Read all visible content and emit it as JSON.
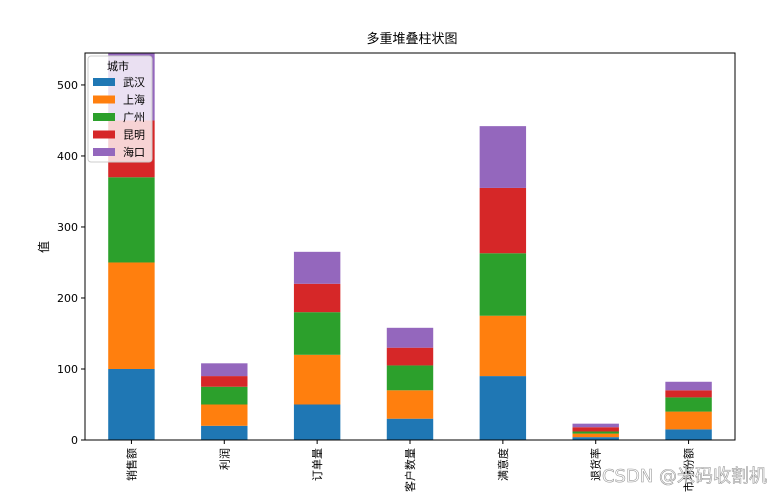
{
  "chart_data": {
    "type": "bar",
    "stacked": true,
    "title": "多重堆叠柱状图",
    "xlabel": "",
    "ylabel": "值",
    "ylim": [
      0,
      545
    ],
    "yticks": [
      0,
      100,
      200,
      300,
      400,
      500
    ],
    "categories": [
      "销售额",
      "利润",
      "订单量",
      "客户数量",
      "满意度",
      "退货率",
      "市场份额"
    ],
    "legend": {
      "title": "城市",
      "placement": "top-left"
    },
    "series": [
      {
        "name": "武汉",
        "color": "#1f77b4",
        "values": [
          100,
          20,
          50,
          30,
          90,
          4,
          15
        ]
      },
      {
        "name": "上海",
        "color": "#ff7f0e",
        "values": [
          150,
          30,
          70,
          40,
          85,
          5,
          25
        ]
      },
      {
        "name": "广州",
        "color": "#2ca02c",
        "values": [
          120,
          25,
          60,
          35,
          88,
          3,
          20
        ]
      },
      {
        "name": "昆明",
        "color": "#d62728",
        "values": [
          80,
          15,
          40,
          25,
          92,
          6,
          10
        ]
      },
      {
        "name": "海口",
        "color": "#9467bd",
        "values": [
          95,
          18,
          45,
          28,
          87,
          5,
          12
        ]
      }
    ],
    "grid": false
  },
  "watermark": "CSDN @米码收割机"
}
